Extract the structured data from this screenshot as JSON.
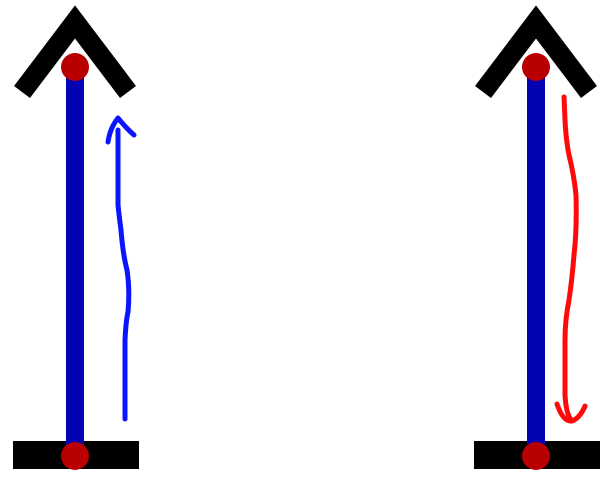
{
  "colors": {
    "background": "#ffffff",
    "rod": "#0303b3",
    "base": "#000000",
    "joint": "#b80000",
    "arrow_up": "#0a14ff",
    "arrow_down": "#ff0a0a"
  },
  "diagram": {
    "figures": [
      {
        "rod_direction": "up",
        "joint_icon": "circle-joint-icon",
        "annotation_arrow": {
          "direction": "up",
          "color_key": "arrow_up"
        }
      },
      {
        "rod_direction": "up",
        "joint_icon": "circle-joint-icon",
        "annotation_arrow": {
          "direction": "down",
          "color_key": "arrow_down"
        }
      }
    ]
  }
}
